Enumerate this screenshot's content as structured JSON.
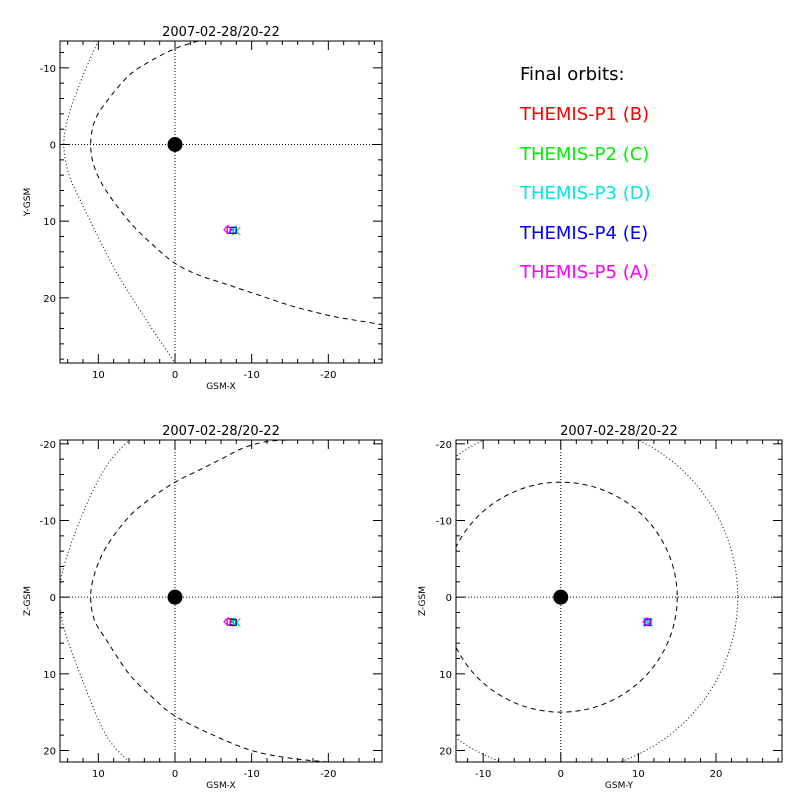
{
  "legend": {
    "title": "Final orbits:",
    "title_color": "#000000",
    "items": [
      {
        "label": "THEMIS-P1 (B)",
        "color": "#ff0000"
      },
      {
        "label": "THEMIS-P2 (C)",
        "color": "#00ee00"
      },
      {
        "label": "THEMIS-P3 (D)",
        "color": "#00e5e5"
      },
      {
        "label": "THEMIS-P4 (E)",
        "color": "#0000ff"
      },
      {
        "label": "THEMIS-P5 (A)",
        "color": "#ff00ff"
      }
    ]
  },
  "chart_data": [
    {
      "type": "scatter",
      "title": "2007-02-28/20-22",
      "xlabel": "GSM-X",
      "ylabel": "Y-GSM",
      "xlim": [
        15,
        -27
      ],
      "ylim": [
        -13.5,
        28.5
      ],
      "xticks": [
        10,
        0,
        -10,
        -20
      ],
      "yticks": [
        -10,
        0,
        10,
        20
      ],
      "earth": [
        0,
        0
      ],
      "grid": "dotted lines through origin",
      "boundaries": [
        {
          "name": "bow-shock",
          "style": "dotted",
          "x": [
            10,
            12,
            13.8,
            14.5,
            13.8,
            12,
            8,
            4,
            0
          ],
          "y": [
            -13.5,
            -9,
            -4,
            0,
            4,
            8,
            16,
            22.5,
            28.5
          ]
        },
        {
          "name": "magnetopause",
          "style": "dashed",
          "x": [
            -3,
            0,
            3,
            6,
            9,
            10.5,
            11,
            10.5,
            9,
            6,
            3,
            0,
            -3,
            -6,
            -9,
            -12,
            -15,
            -18,
            -21,
            -24,
            -27
          ],
          "y": [
            -13.5,
            -12.5,
            -11,
            -9,
            -5.5,
            -3,
            0,
            3,
            6,
            10,
            13,
            15.5,
            17,
            18,
            19,
            20,
            21,
            21.8,
            22.5,
            23,
            23.5
          ]
        }
      ],
      "points": [
        {
          "probe": "P1",
          "x": -7.2,
          "y": 11.2
        },
        {
          "probe": "P2",
          "x": -8,
          "y": 11.3
        },
        {
          "probe": "P3",
          "x": -7.4,
          "y": 11.1
        },
        {
          "probe": "P4",
          "x": -7.6,
          "y": 11.2
        },
        {
          "probe": "P5",
          "x": -6.9,
          "y": 11.1
        }
      ]
    },
    {
      "type": "scatter",
      "title": "2007-02-28/20-22",
      "xlabel": "GSM-X",
      "ylabel": "Z-GSM",
      "xlim": [
        15,
        -27
      ],
      "ylim": [
        -20.5,
        21.5
      ],
      "xticks": [
        10,
        0,
        -10,
        -20
      ],
      "yticks": [
        -20,
        -10,
        0,
        10,
        20
      ],
      "earth": [
        0,
        0
      ],
      "grid": "dotted lines through origin",
      "boundaries": [
        {
          "name": "bow-shock",
          "style": "dotted",
          "x": [
            6,
            9,
            12,
            14.5,
            15,
            14.5,
            12,
            9,
            6
          ],
          "y": [
            21.5,
            18,
            11,
            4,
            0,
            -4,
            -11,
            -17,
            -20.5
          ]
        },
        {
          "name": "magnetopause",
          "style": "dashed",
          "x": [
            -20,
            -15,
            -10,
            -5,
            0,
            3,
            6,
            9,
            10.5,
            11,
            10.5,
            9,
            6,
            3,
            0,
            -3,
            -6,
            -9,
            -12,
            -15
          ],
          "y": [
            21.5,
            21,
            20,
            18,
            15.5,
            13,
            10,
            5.5,
            3,
            0,
            -3,
            -6.5,
            -10.5,
            -13,
            -15,
            -16.5,
            -18,
            -19.5,
            -20.3,
            -20.5
          ]
        }
      ],
      "points": [
        {
          "probe": "P1",
          "x": -7.2,
          "y": 3.2
        },
        {
          "probe": "P2",
          "x": -8,
          "y": 3.3
        },
        {
          "probe": "P3",
          "x": -7.4,
          "y": 3.2
        },
        {
          "probe": "P4",
          "x": -7.6,
          "y": 3.3
        },
        {
          "probe": "P5",
          "x": -6.9,
          "y": 3.2
        }
      ]
    },
    {
      "type": "scatter",
      "title": "2007-02-28/20-22",
      "xlabel": "GSM-Y",
      "ylabel": "Z-GSM",
      "xlim": [
        -13.5,
        28.5
      ],
      "ylim": [
        -20.5,
        21.5
      ],
      "xticks": [
        -10,
        0,
        10,
        20
      ],
      "yticks": [
        -20,
        -10,
        0,
        10,
        20
      ],
      "earth": [
        0,
        0
      ],
      "grid": "dotted lines through origin",
      "boundaries": [
        {
          "name": "bow-shock",
          "style": "circle-dotted",
          "r": 22.8
        },
        {
          "name": "magnetopause",
          "style": "circle-dashed",
          "r": 15
        }
      ],
      "points": [
        {
          "probe": "P1",
          "x": 11.2,
          "y": 3.2
        },
        {
          "probe": "P2",
          "x": 11.3,
          "y": 3.3
        },
        {
          "probe": "P3",
          "x": 11.1,
          "y": 3.2
        },
        {
          "probe": "P4",
          "x": 11.2,
          "y": 3.3
        },
        {
          "probe": "P5",
          "x": 11.1,
          "y": 3.2
        }
      ]
    }
  ]
}
